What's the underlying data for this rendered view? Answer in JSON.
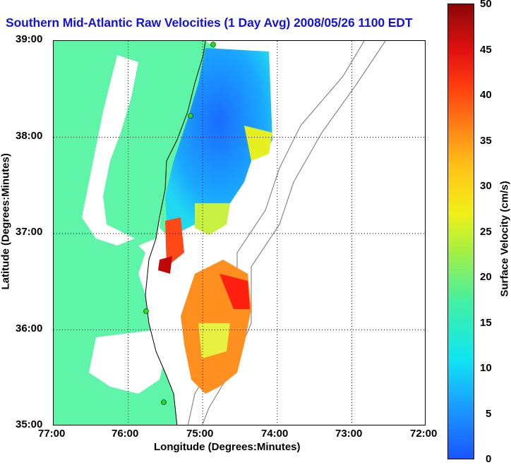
{
  "title": "Southern Mid-Atlantic Raw Velocities (1 Day Avg) 2008/05/26 1100 EDT",
  "axes": {
    "xlabel": "Longitude (Degrees:Minutes)",
    "ylabel": "Latitude (Degrees:Minutes)",
    "xticks": [
      "77:00",
      "76:00",
      "75:00",
      "74:00",
      "73:00",
      "72:00"
    ],
    "yticks": [
      "39:00",
      "38:00",
      "37:00",
      "36:00",
      "35:00"
    ]
  },
  "colorbar": {
    "label": "Surface Velocity (cm/s)",
    "ticks": [
      "50",
      "45",
      "40",
      "35",
      "30",
      "25",
      "20",
      "15",
      "10",
      "5",
      "0"
    ],
    "range": [
      0,
      50
    ]
  },
  "map": {
    "land_color": "#5ff5a8",
    "water_color": "#ffffff",
    "grid": true,
    "stations": 4
  }
}
